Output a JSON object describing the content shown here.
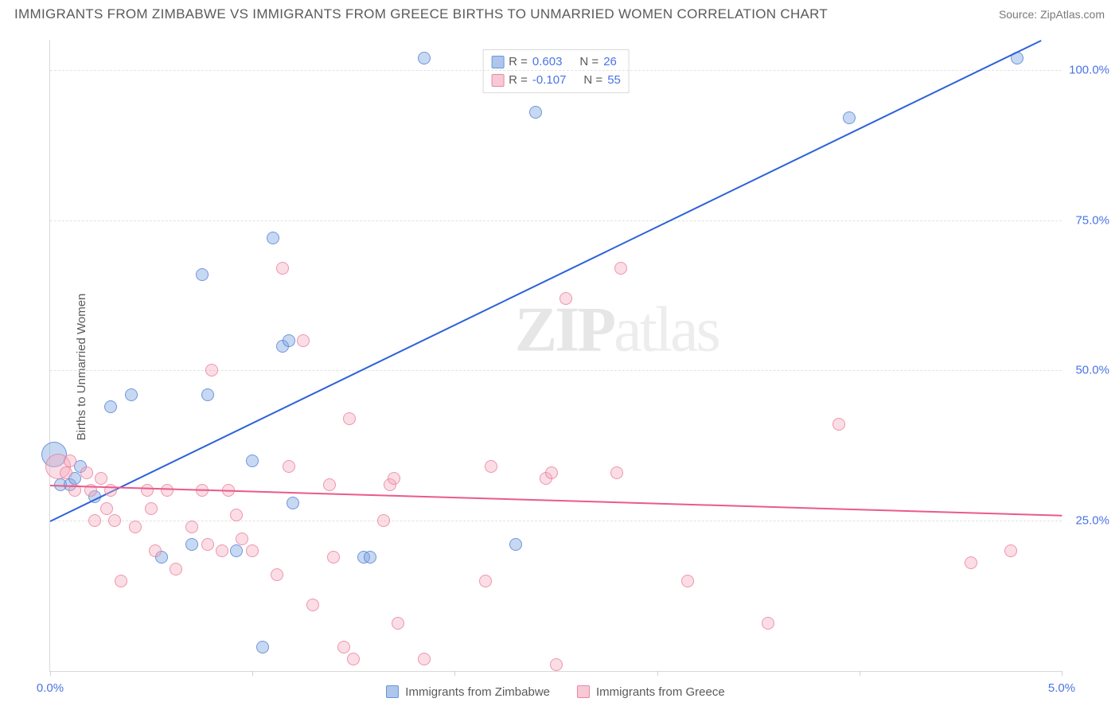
{
  "title": "IMMIGRANTS FROM ZIMBABWE VS IMMIGRANTS FROM GREECE BIRTHS TO UNMARRIED WOMEN CORRELATION CHART",
  "source_label": "Source: ",
  "source_name": "ZipAtlas.com",
  "y_axis_label": "Births to Unmarried Women",
  "watermark": {
    "part1": "ZIP",
    "part2": "atlas"
  },
  "chart": {
    "type": "scatter",
    "xlim": [
      0,
      5
    ],
    "ylim": [
      0,
      105
    ],
    "y_ticks": [
      25,
      50,
      75,
      100
    ],
    "y_tick_labels": [
      "25.0%",
      "50.0%",
      "75.0%",
      "100.0%"
    ],
    "x_ticks": [
      0,
      1,
      2,
      3,
      4,
      5
    ],
    "x_tick_labels": [
      "0.0%",
      "",
      "",
      "",
      "",
      "5.0%"
    ],
    "grid_color": "#e2e2e2",
    "border_color": "#d8d8d8",
    "background_color": "#ffffff",
    "point_radius": 8,
    "big_point_radius": 16,
    "series": [
      {
        "name": "Immigrants from Zimbabwe",
        "color_fill": "rgba(131,168,226,0.45)",
        "color_stroke": "rgba(72,123,210,0.7)",
        "legend_class": "blue",
        "R": "0.603",
        "N": "26",
        "trend": {
          "x1": 0.0,
          "y1": 25,
          "x2": 4.9,
          "y2": 105,
          "color": "#2e62d9"
        },
        "points": [
          {
            "x": 0.02,
            "y": 36,
            "r": 16
          },
          {
            "x": 0.05,
            "y": 31
          },
          {
            "x": 0.1,
            "y": 31
          },
          {
            "x": 0.12,
            "y": 32
          },
          {
            "x": 0.15,
            "y": 34
          },
          {
            "x": 0.22,
            "y": 29
          },
          {
            "x": 0.3,
            "y": 44
          },
          {
            "x": 0.4,
            "y": 46
          },
          {
            "x": 0.55,
            "y": 19
          },
          {
            "x": 0.7,
            "y": 21
          },
          {
            "x": 0.75,
            "y": 66
          },
          {
            "x": 0.78,
            "y": 46
          },
          {
            "x": 0.92,
            "y": 20
          },
          {
            "x": 1.0,
            "y": 35
          },
          {
            "x": 1.05,
            "y": 4
          },
          {
            "x": 1.1,
            "y": 72
          },
          {
            "x": 1.15,
            "y": 54
          },
          {
            "x": 1.18,
            "y": 55
          },
          {
            "x": 1.2,
            "y": 28
          },
          {
            "x": 1.55,
            "y": 19
          },
          {
            "x": 1.58,
            "y": 19
          },
          {
            "x": 1.85,
            "y": 102
          },
          {
            "x": 2.3,
            "y": 21
          },
          {
            "x": 2.4,
            "y": 93
          },
          {
            "x": 3.95,
            "y": 92
          },
          {
            "x": 4.78,
            "y": 102
          }
        ]
      },
      {
        "name": "Immigrants from Greece",
        "color_fill": "rgba(244,170,190,0.4)",
        "color_stroke": "rgba(232,118,150,0.7)",
        "legend_class": "pink",
        "R": "-0.107",
        "N": "55",
        "trend": {
          "x1": 0.0,
          "y1": 31,
          "x2": 5.0,
          "y2": 26,
          "color": "#ea5a8b"
        },
        "points": [
          {
            "x": 0.04,
            "y": 34,
            "r": 16
          },
          {
            "x": 0.08,
            "y": 33
          },
          {
            "x": 0.1,
            "y": 35
          },
          {
            "x": 0.12,
            "y": 30
          },
          {
            "x": 0.18,
            "y": 33
          },
          {
            "x": 0.2,
            "y": 30
          },
          {
            "x": 0.22,
            "y": 25
          },
          {
            "x": 0.25,
            "y": 32
          },
          {
            "x": 0.28,
            "y": 27
          },
          {
            "x": 0.3,
            "y": 30
          },
          {
            "x": 0.32,
            "y": 25
          },
          {
            "x": 0.35,
            "y": 15
          },
          {
            "x": 0.42,
            "y": 24
          },
          {
            "x": 0.48,
            "y": 30
          },
          {
            "x": 0.5,
            "y": 27
          },
          {
            "x": 0.52,
            "y": 20
          },
          {
            "x": 0.58,
            "y": 30
          },
          {
            "x": 0.62,
            "y": 17
          },
          {
            "x": 0.7,
            "y": 24
          },
          {
            "x": 0.75,
            "y": 30
          },
          {
            "x": 0.78,
            "y": 21
          },
          {
            "x": 0.8,
            "y": 50
          },
          {
            "x": 0.85,
            "y": 20
          },
          {
            "x": 0.88,
            "y": 30
          },
          {
            "x": 0.92,
            "y": 26
          },
          {
            "x": 0.95,
            "y": 22
          },
          {
            "x": 1.0,
            "y": 20
          },
          {
            "x": 1.12,
            "y": 16
          },
          {
            "x": 1.15,
            "y": 67
          },
          {
            "x": 1.18,
            "y": 34
          },
          {
            "x": 1.25,
            "y": 55
          },
          {
            "x": 1.3,
            "y": 11
          },
          {
            "x": 1.38,
            "y": 31
          },
          {
            "x": 1.4,
            "y": 19
          },
          {
            "x": 1.45,
            "y": 4
          },
          {
            "x": 1.48,
            "y": 42
          },
          {
            "x": 1.5,
            "y": 2
          },
          {
            "x": 1.65,
            "y": 25
          },
          {
            "x": 1.68,
            "y": 31
          },
          {
            "x": 1.7,
            "y": 32
          },
          {
            "x": 1.72,
            "y": 8
          },
          {
            "x": 1.85,
            "y": 2
          },
          {
            "x": 2.15,
            "y": 15
          },
          {
            "x": 2.18,
            "y": 34
          },
          {
            "x": 2.45,
            "y": 32
          },
          {
            "x": 2.48,
            "y": 33
          },
          {
            "x": 2.5,
            "y": 1
          },
          {
            "x": 2.55,
            "y": 62
          },
          {
            "x": 2.8,
            "y": 33
          },
          {
            "x": 2.82,
            "y": 67
          },
          {
            "x": 3.15,
            "y": 15
          },
          {
            "x": 3.55,
            "y": 8
          },
          {
            "x": 3.9,
            "y": 41
          },
          {
            "x": 4.55,
            "y": 18
          },
          {
            "x": 4.75,
            "y": 20
          }
        ]
      }
    ]
  },
  "legend_top": {
    "r_label": "R =",
    "n_label": "N ="
  },
  "label_fontsize": 15,
  "tick_color": "#4b74e6"
}
